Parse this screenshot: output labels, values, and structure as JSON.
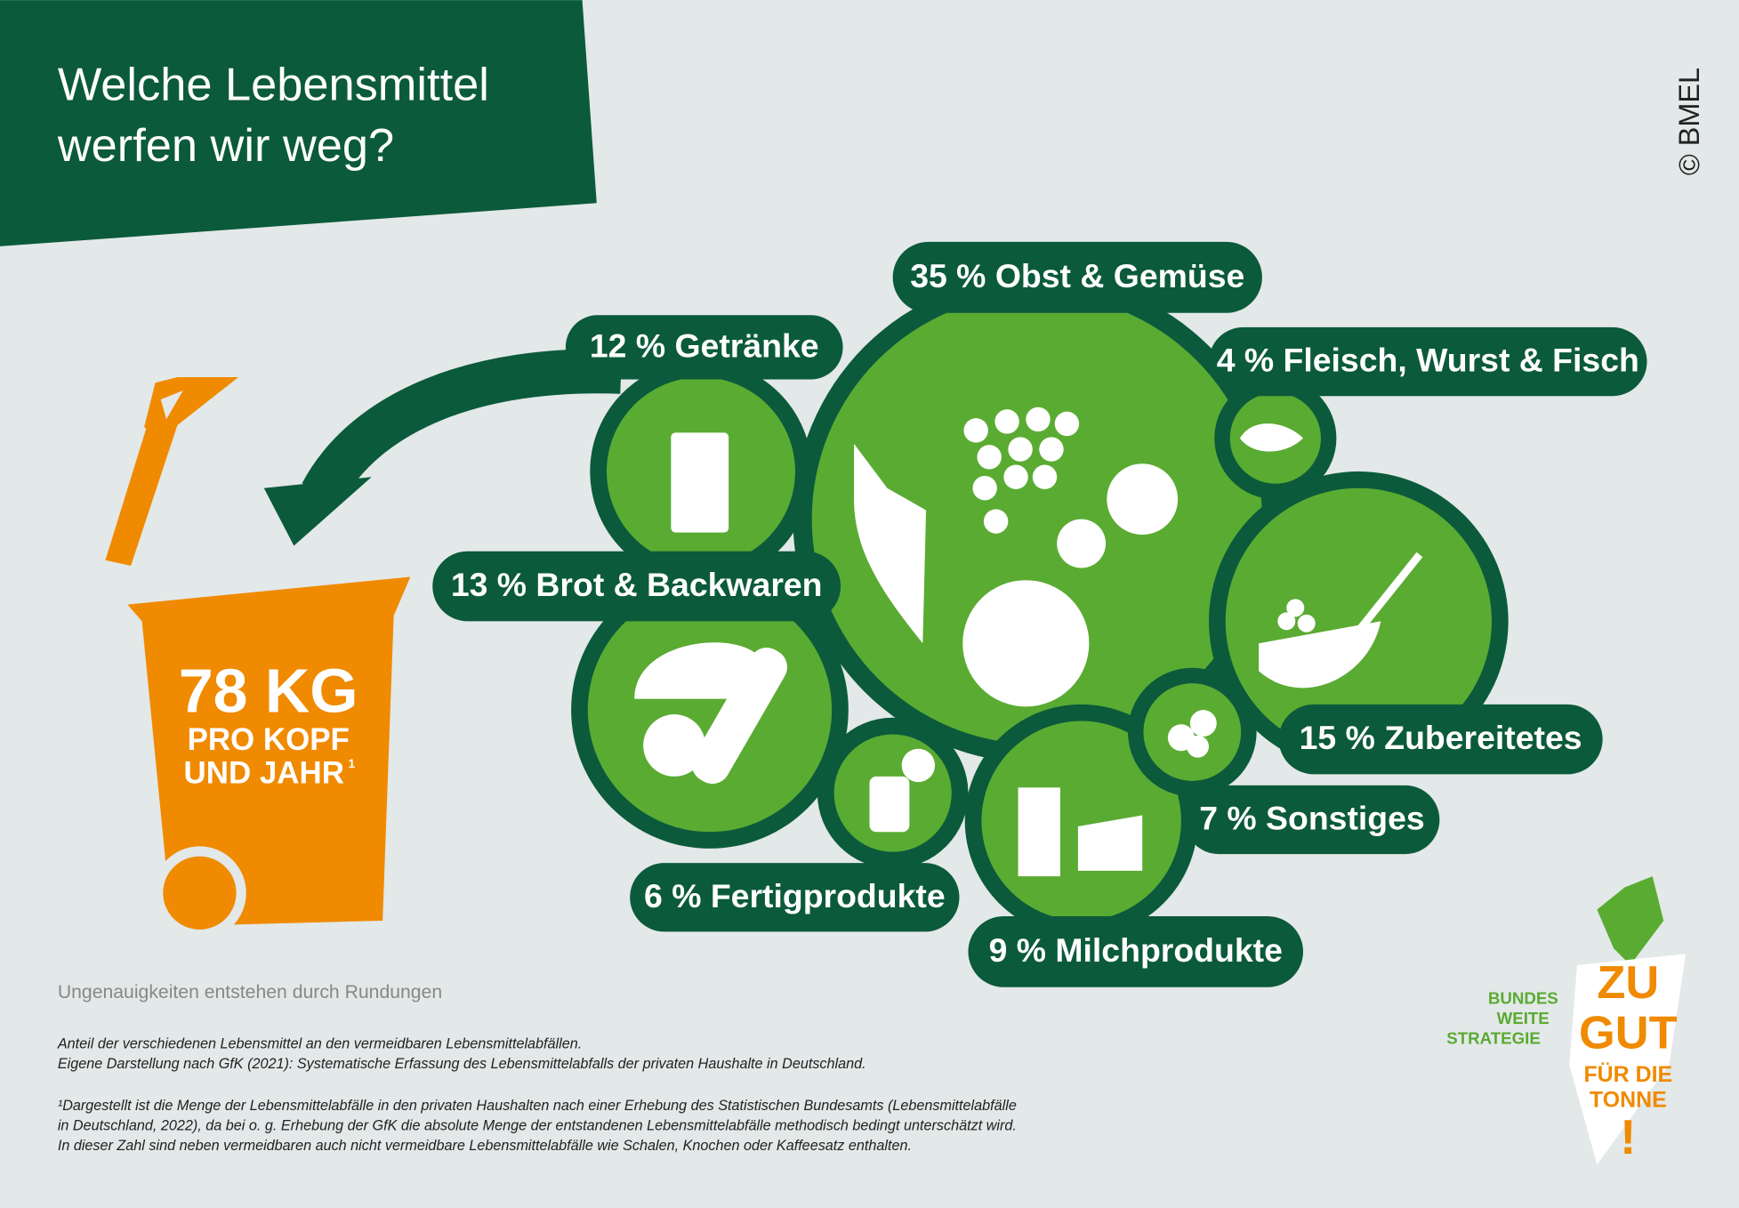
{
  "header": {
    "title_lines": [
      "Welche Lebensmittel",
      "werfen wir weg?"
    ],
    "copyright": "© BMEL"
  },
  "bin": {
    "amount": "78 KG",
    "line2": "PRO KOPF",
    "line3": "UND JAHR",
    "footnote_mark": "1"
  },
  "categories": [
    {
      "label": "35 % Obst & Gemüse"
    },
    {
      "label": "12 % Getränke"
    },
    {
      "label": "4 % Fleisch, Wurst & Fisch"
    },
    {
      "label": "13 % Brot & Backwaren"
    },
    {
      "label": "15 % Zubereitetes"
    },
    {
      "label": "7 % Sonstiges"
    },
    {
      "label": "6 % Fertigprodukte"
    },
    {
      "label": "9 % Milchprodukte"
    }
  ],
  "note": "Ungenauigkeiten entstehen durch Rundungen",
  "footnotes": [
    "Anteil der verschiedenen Lebensmittel an den vermeidbaren Lebensmittelabfällen.",
    "Eigene Darstellung nach GfK (2021): Systematische Erfassung des Lebensmittelabfalls der privaten Haushalte in Deutschland.",
    "¹Dargestellt ist die Menge der Lebensmittelabfälle in den privaten Haushalten nach einer Erhebung des Statistischen Bundesamts (Lebensmittelabfälle",
    "in Deutschland, 2022), da bei o. g. Erhebung der GfK die absolute Menge der entstandenen Lebensmittelabfälle methodisch bedingt unterschätzt wird.",
    "In dieser Zahl sind neben vermeidbaren auch nicht vermeidbare Lebensmittelabfälle wie Schalen, Knochen oder Kaffeesatz enthalten."
  ],
  "logo": {
    "left": [
      "BUNDES",
      "WEITE",
      "STRATEGIE"
    ],
    "right": [
      "ZU",
      "GUT",
      "FÜR DIE",
      "TONNE",
      "!"
    ]
  }
}
